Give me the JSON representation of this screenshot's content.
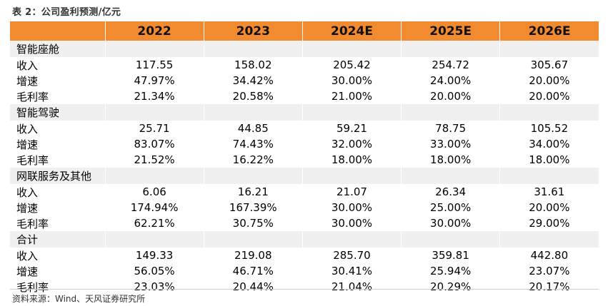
{
  "caption": "表 2：公司盈利预测/亿元",
  "header": {
    "label": "",
    "years": [
      "2022",
      "2023",
      "2024E",
      "2025E",
      "2026E"
    ]
  },
  "sections": [
    {
      "name": "智能座舱",
      "rows": [
        {
          "label": "收入",
          "values": [
            "117.55",
            "158.02",
            "205.42",
            "254.72",
            "305.67"
          ]
        },
        {
          "label": "增速",
          "values": [
            "47.97%",
            "34.42%",
            "30.00%",
            "24.00%",
            "20.00%"
          ]
        },
        {
          "label": "毛利率",
          "values": [
            "21.34%",
            "20.58%",
            "21.00%",
            "20.00%",
            "20.00%"
          ]
        }
      ]
    },
    {
      "name": "智能驾驶",
      "rows": [
        {
          "label": "收入",
          "values": [
            "25.71",
            "44.85",
            "59.21",
            "78.75",
            "105.52"
          ]
        },
        {
          "label": "增速",
          "values": [
            "83.07%",
            "74.43%",
            "32.00%",
            "33.00%",
            "34.00%"
          ]
        },
        {
          "label": "毛利率",
          "values": [
            "21.52%",
            "16.22%",
            "18.00%",
            "18.00%",
            "18.00%"
          ]
        }
      ]
    },
    {
      "name": "网联服务及其他",
      "rows": [
        {
          "label": "收入",
          "values": [
            "6.06",
            "16.21",
            "21.07",
            "26.34",
            "31.61"
          ]
        },
        {
          "label": "增速",
          "values": [
            "174.94%",
            "167.39%",
            "30.00%",
            "25.00%",
            "20.00%"
          ]
        },
        {
          "label": "毛利率",
          "values": [
            "62.21%",
            "30.75%",
            "30.00%",
            "30.00%",
            "29.00%"
          ]
        }
      ]
    },
    {
      "name": "合计",
      "rows": [
        {
          "label": "收入",
          "values": [
            "149.33",
            "219.08",
            "285.70",
            "359.81",
            "442.80"
          ]
        },
        {
          "label": "增速",
          "values": [
            "56.05%",
            "46.71%",
            "30.41%",
            "25.94%",
            "23.07%"
          ]
        },
        {
          "label": "毛利率",
          "values": [
            "23.03%",
            "20.44%",
            "21.04%",
            "20.29%",
            "20.17%"
          ]
        }
      ]
    }
  ],
  "source": "资料来源：Wind、天风证券研究所",
  "colors": {
    "header_bg": "#f28a30",
    "section_bg": "#f0f0f0"
  }
}
